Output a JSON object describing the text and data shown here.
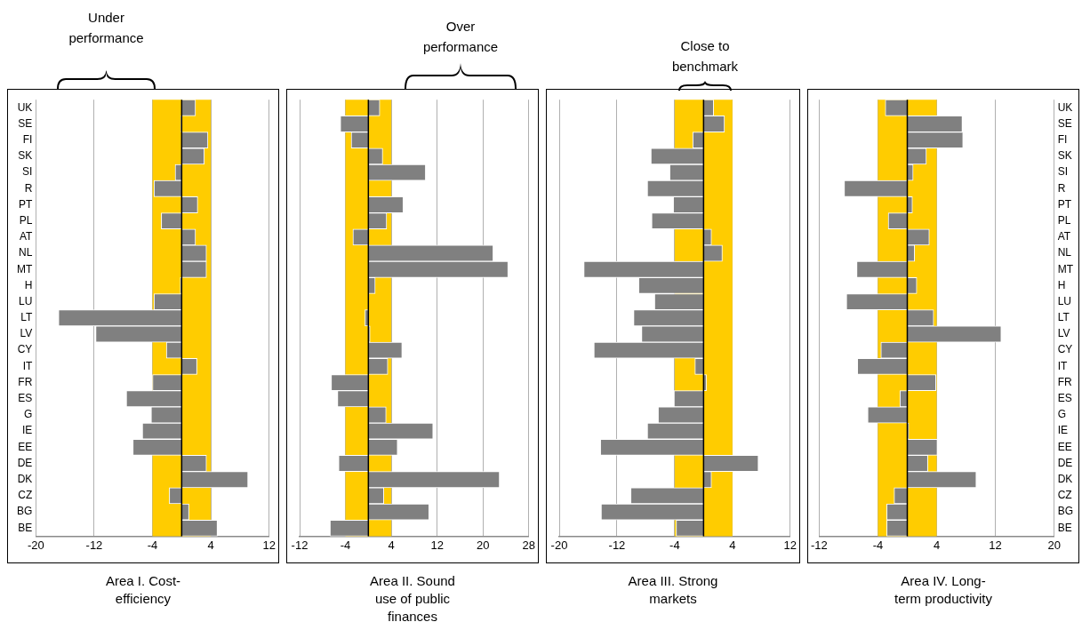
{
  "chart_data": [
    {
      "type": "bar",
      "orientation": "horizontal",
      "title": "Area I. Cost-efficiency",
      "annotations": [
        "Under performance"
      ],
      "categories": [
        "UK",
        "SE",
        "FI",
        "SK",
        "SI",
        "R",
        "PT",
        "PL",
        "AT",
        "NL",
        "MT",
        "H",
        "LU",
        "LT",
        "LV",
        "CY",
        "IT",
        "FR",
        "ES",
        "G",
        "IE",
        "EE",
        "DE",
        "DK",
        "CZ",
        "BG",
        "BE"
      ],
      "series": [
        {
          "color": "#808080",
          "values": [
            1.9,
            -0.1,
            3.6,
            3.1,
            -0.9,
            -3.8,
            2.2,
            -2.8,
            1.9,
            3.4,
            3.4,
            -0.2,
            -3.8,
            -16.9,
            -11.8,
            -2.1,
            2.1,
            -4.0,
            -7.6,
            -4.2,
            -5.4,
            -6.7,
            3.4,
            9.1,
            -1.7,
            1.0,
            4.9
          ]
        }
      ],
      "xlim": [
        -20,
        12
      ],
      "xticks": [
        -20,
        -12,
        -4,
        4,
        12
      ],
      "grid": "x",
      "bands": [
        {
          "axis": "x",
          "from": -4,
          "to": 4,
          "color": "#ffcc00"
        }
      ],
      "ref_lines": [
        {
          "axis": "x",
          "value": 0,
          "color": "#000000"
        }
      ]
    },
    {
      "type": "bar",
      "orientation": "horizontal",
      "title": "Area II. Sound use of public finances",
      "annotations": [
        "Over performance"
      ],
      "categories": [
        null,
        null,
        null,
        null,
        null,
        null,
        null,
        null,
        null,
        null,
        null,
        null,
        null,
        null,
        null,
        null,
        null,
        null,
        null,
        null,
        null,
        null,
        null,
        null,
        null,
        null,
        null
      ],
      "series": [
        {
          "color": "#808080",
          "values": [
            2.0,
            -4.9,
            -3.0,
            2.5,
            10.0,
            0,
            6.1,
            3.2,
            -2.7,
            21.8,
            24.4,
            1.2,
            0,
            -0.6,
            0.3,
            5.9,
            3.4,
            -6.5,
            -5.4,
            3.1,
            11.3,
            5.1,
            -5.2,
            22.9,
            2.7,
            10.6,
            -6.7
          ]
        }
      ],
      "xlim": [
        -12,
        28
      ],
      "xticks": [
        -12,
        -4,
        4,
        12,
        20,
        28
      ],
      "grid": "x",
      "bands": [
        {
          "axis": "x",
          "from": -4,
          "to": 4,
          "color": "#ffcc00"
        }
      ],
      "ref_lines": [
        {
          "axis": "x",
          "value": 0,
          "color": "#000000"
        }
      ]
    },
    {
      "type": "bar",
      "orientation": "horizontal",
      "title": "Area III. Strong markets",
      "annotations": [
        "Close to benchmark"
      ],
      "categories": [
        null,
        null,
        null,
        null,
        null,
        null,
        null,
        null,
        null,
        null,
        null,
        null,
        null,
        null,
        null,
        null,
        null,
        null,
        null,
        null,
        null,
        null,
        null,
        null,
        null,
        null,
        null
      ],
      "series": [
        {
          "color": "#808080",
          "values": [
            1.4,
            2.9,
            -1.5,
            -7.3,
            -4.7,
            -7.8,
            -4.2,
            -7.2,
            1.1,
            2.6,
            -16.6,
            -9.0,
            -6.8,
            -9.7,
            -8.6,
            -15.2,
            -1.2,
            0.4,
            -4.1,
            -6.3,
            -7.8,
            -14.3,
            7.6,
            1.1,
            -10.1,
            -14.2,
            -3.8
          ]
        }
      ],
      "xlim": [
        -20,
        12
      ],
      "xticks": [
        -20,
        -12,
        -4,
        4,
        12
      ],
      "grid": "x",
      "bands": [
        {
          "axis": "x",
          "from": -4,
          "to": 4,
          "color": "#ffcc00"
        }
      ],
      "ref_lines": [
        {
          "axis": "x",
          "value": 0,
          "color": "#000000"
        }
      ]
    },
    {
      "type": "bar",
      "orientation": "horizontal",
      "title": "Area IV. Long-term productivity",
      "categories": [
        "UK",
        "SE",
        "FI",
        "SK",
        "SI",
        "R",
        "PT",
        "PL",
        "AT",
        "NL",
        "MT",
        "H",
        "LU",
        "LT",
        "LV",
        "CY",
        "IT",
        "FR",
        "ES",
        "G",
        "IE",
        "EE",
        "DE",
        "DK",
        "CZ",
        "BG",
        "BE"
      ],
      "series": [
        {
          "color": "#808080",
          "values": [
            -3.0,
            7.5,
            7.6,
            2.6,
            0.8,
            -8.6,
            0.7,
            -2.6,
            3.0,
            1.0,
            -6.9,
            1.3,
            -8.3,
            3.6,
            12.8,
            -3.6,
            -6.8,
            3.9,
            -1.0,
            -5.4,
            0.2,
            4.1,
            2.8,
            9.4,
            -1.8,
            -2.8,
            -2.8
          ]
        }
      ],
      "xlim": [
        -12,
        20
      ],
      "xticks": [
        -12,
        -4,
        4,
        12,
        20
      ],
      "grid": "x",
      "bands": [
        {
          "axis": "x",
          "from": -4,
          "to": 4,
          "color": "#ffcc00"
        }
      ],
      "ref_lines": [
        {
          "axis": "x",
          "value": 0,
          "color": "#000000"
        }
      ]
    }
  ]
}
